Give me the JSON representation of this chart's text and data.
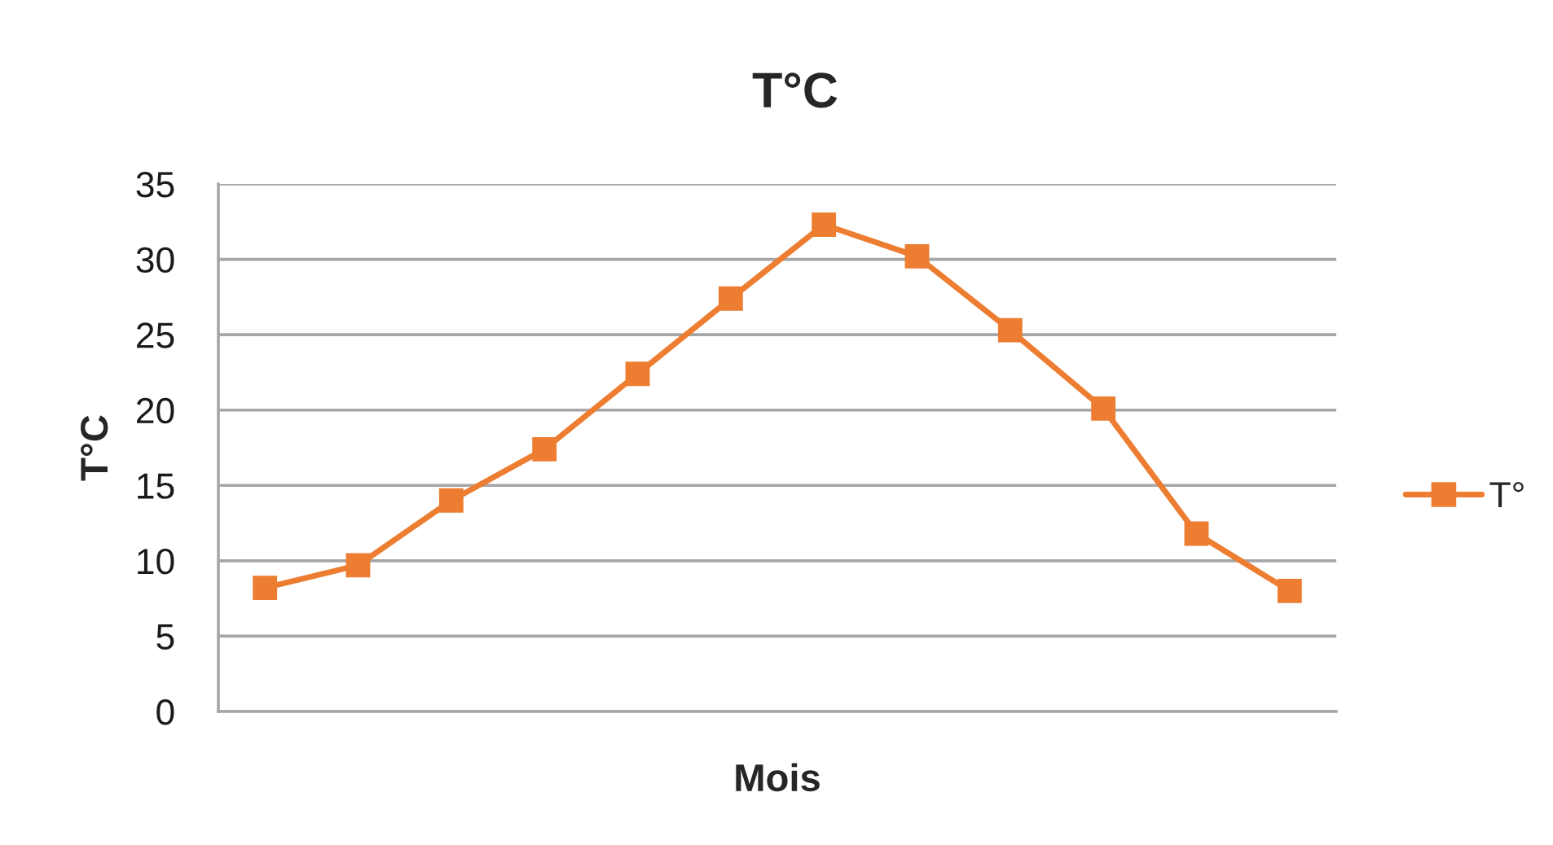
{
  "chart_data": {
    "type": "line",
    "title": "T°C",
    "xlabel": "Mois",
    "ylabel": "T°C",
    "categories": [
      null,
      null,
      null,
      null,
      null,
      null,
      null,
      null,
      null,
      null,
      null,
      null
    ],
    "series": [
      {
        "name": "T°",
        "color": "#ed7d31",
        "values": [
          8.2,
          9.7,
          14.0,
          17.4,
          22.4,
          27.4,
          32.3,
          30.2,
          25.3,
          20.1,
          11.8,
          8.0
        ]
      }
    ],
    "ylim": [
      0,
      35
    ],
    "yticks": [
      0,
      5,
      10,
      15,
      20,
      25,
      30,
      35
    ],
    "grid": "y",
    "legend": "right",
    "marker": "square",
    "line_style": "solid"
  }
}
